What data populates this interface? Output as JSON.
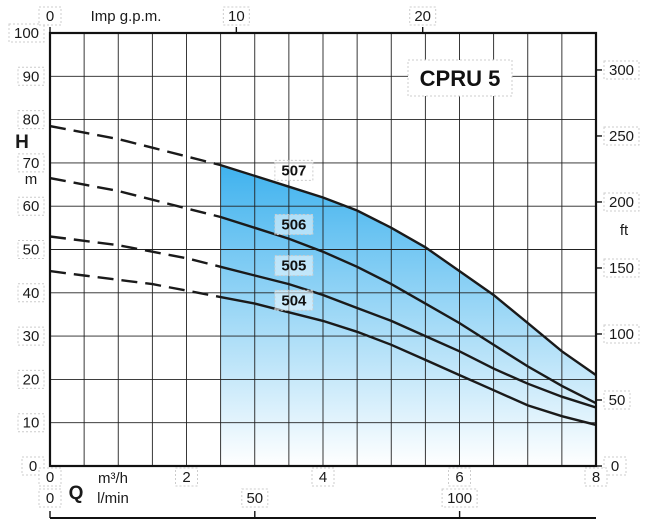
{
  "chart_data": {
    "type": "line",
    "title": "CPRU 5",
    "h_axis": {
      "letter": "H",
      "unit": "m",
      "range": [
        0,
        100
      ],
      "ticks": [
        "0",
        "10",
        "20",
        "30",
        "40",
        "50",
        "60",
        "70",
        "80",
        "90",
        "100"
      ]
    },
    "ft_axis": {
      "unit": "ft",
      "range": [
        0,
        328
      ],
      "ticks": [
        "0",
        "50",
        "100",
        "150",
        "200",
        "250",
        "300"
      ]
    },
    "q_axis": {
      "letter": "Q",
      "unit": "m³/h",
      "range": [
        0,
        8
      ],
      "ticks": [
        "0",
        "2",
        "4",
        "6",
        "8"
      ]
    },
    "lmin_axis": {
      "unit": "l/min",
      "range": [
        0,
        133.3
      ],
      "ticks": [
        "0",
        "50",
        "100"
      ]
    },
    "gpm_axis": {
      "unit": "Imp g.p.m.",
      "range": [
        0,
        29.3
      ],
      "ticks": [
        "0",
        "10",
        "20"
      ]
    },
    "operating_range_q": [
      2.5,
      8
    ],
    "series": [
      {
        "name": "507",
        "values": [
          [
            0,
            78.5
          ],
          [
            0.5,
            77
          ],
          [
            1,
            75.5
          ],
          [
            1.5,
            73.5
          ],
          [
            2,
            71.5
          ],
          [
            2.5,
            69.5
          ],
          [
            3,
            67
          ],
          [
            3.5,
            64.5
          ],
          [
            4,
            62
          ],
          [
            4.5,
            59
          ],
          [
            5,
            55
          ],
          [
            5.5,
            50.5
          ],
          [
            6,
            45
          ],
          [
            6.5,
            39.5
          ],
          [
            7,
            33
          ],
          [
            7.5,
            26.5
          ],
          [
            8,
            21
          ]
        ]
      },
      {
        "name": "506",
        "values": [
          [
            0,
            66.5
          ],
          [
            0.5,
            65
          ],
          [
            1,
            63.5
          ],
          [
            1.5,
            61.5
          ],
          [
            2,
            59.5
          ],
          [
            2.5,
            57.5
          ],
          [
            3,
            55
          ],
          [
            3.5,
            52.5
          ],
          [
            4,
            49.5
          ],
          [
            4.5,
            46
          ],
          [
            5,
            42
          ],
          [
            5.5,
            37.5
          ],
          [
            6,
            33
          ],
          [
            6.5,
            28
          ],
          [
            7,
            23
          ],
          [
            7.5,
            18.5
          ],
          [
            8,
            14.5
          ]
        ]
      },
      {
        "name": "505",
        "values": [
          [
            0,
            53
          ],
          [
            0.5,
            52
          ],
          [
            1,
            51
          ],
          [
            1.5,
            49.5
          ],
          [
            2,
            48
          ],
          [
            2.5,
            46
          ],
          [
            3,
            44
          ],
          [
            3.5,
            42
          ],
          [
            4,
            39.5
          ],
          [
            4.5,
            36.5
          ],
          [
            5,
            33.5
          ],
          [
            5.5,
            30
          ],
          [
            6,
            26.5
          ],
          [
            6.5,
            22.5
          ],
          [
            7,
            19
          ],
          [
            7.5,
            16
          ],
          [
            8,
            13.5
          ]
        ]
      },
      {
        "name": "504",
        "values": [
          [
            0,
            45
          ],
          [
            0.5,
            44
          ],
          [
            1,
            43
          ],
          [
            1.5,
            42
          ],
          [
            2,
            40.5
          ],
          [
            2.5,
            39
          ],
          [
            3,
            37.5
          ],
          [
            3.5,
            35.5
          ],
          [
            4,
            33.5
          ],
          [
            4.5,
            31
          ],
          [
            5,
            28
          ],
          [
            5.5,
            24.5
          ],
          [
            6,
            21
          ],
          [
            6.5,
            17.5
          ],
          [
            7,
            14
          ],
          [
            7.5,
            11.5
          ],
          [
            8,
            9.5
          ]
        ]
      }
    ],
    "label_positions": [
      {
        "name": "507",
        "q": 3.5,
        "h": 68.5
      },
      {
        "name": "506",
        "q": 3.5,
        "h": 56
      },
      {
        "name": "505",
        "q": 3.5,
        "h": 46.5
      },
      {
        "name": "504",
        "q": 3.5,
        "h": 38.5
      }
    ],
    "grid": true,
    "colors": {
      "fill_top": "#3fb2ee",
      "fill_bottom": "#ffffff",
      "line": "#1a1a1a"
    }
  }
}
